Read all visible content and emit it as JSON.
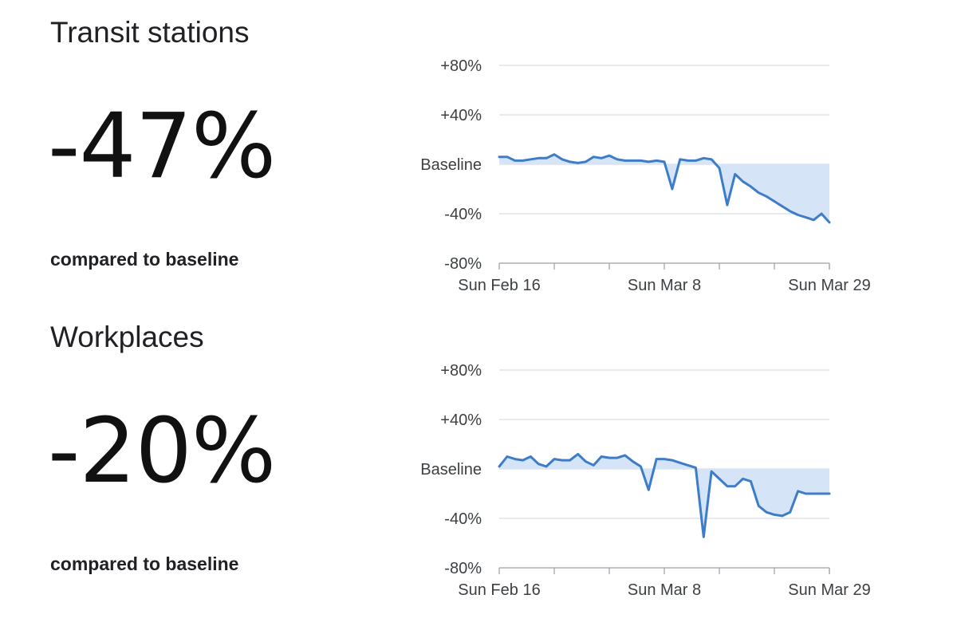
{
  "chart_data": [
    {
      "type": "line",
      "title": "Transit stations",
      "headline_value": "-47%",
      "caption": "compared to baseline",
      "y_ticks": [
        "+80%",
        "+40%",
        "Baseline",
        "-40%",
        "-80%"
      ],
      "ylim": [
        -80,
        80
      ],
      "x_tick_labels": [
        "Sun Feb 16",
        "Sun Mar 8",
        "Sun Mar 29"
      ],
      "x_tick_indices": [
        0,
        21,
        42
      ],
      "x_count": 43,
      "series": [
        {
          "name": "Transit stations",
          "values": [
            6,
            6,
            3,
            3,
            4,
            5,
            5,
            8,
            4,
            2,
            1,
            2,
            6,
            5,
            7,
            4,
            3,
            3,
            3,
            2,
            3,
            2,
            -20,
            4,
            3,
            3,
            5,
            4,
            -3,
            -33,
            -8,
            -14,
            -18,
            -23,
            -26,
            -30,
            -34,
            -38,
            -41,
            -43,
            -45,
            -40,
            -47
          ]
        }
      ],
      "colors": {
        "line": "#3d7cc9",
        "fill": "#d6e4f8",
        "grid": "#dadce0"
      }
    },
    {
      "type": "line",
      "title": "Workplaces",
      "headline_value": "-20%",
      "caption": "compared to baseline",
      "y_ticks": [
        "+80%",
        "+40%",
        "Baseline",
        "-40%",
        "-80%"
      ],
      "ylim": [
        -80,
        80
      ],
      "x_tick_labels": [
        "Sun Feb 16",
        "Sun Mar 8",
        "Sun Mar 29"
      ],
      "x_tick_indices": [
        0,
        21,
        42
      ],
      "x_count": 43,
      "series": [
        {
          "name": "Workplaces",
          "values": [
            2,
            10,
            8,
            7,
            10,
            4,
            2,
            8,
            7,
            7,
            12,
            6,
            3,
            10,
            9,
            9,
            11,
            6,
            2,
            -17,
            8,
            8,
            7,
            5,
            3,
            1,
            -55,
            -2,
            -8,
            -14,
            -14,
            -8,
            -10,
            -30,
            -35,
            -37,
            -38,
            -35,
            -18,
            -20,
            -20,
            -20,
            -20
          ]
        }
      ],
      "colors": {
        "line": "#3d7cc9",
        "fill": "#d6e4f8",
        "grid": "#dadce0"
      }
    }
  ]
}
